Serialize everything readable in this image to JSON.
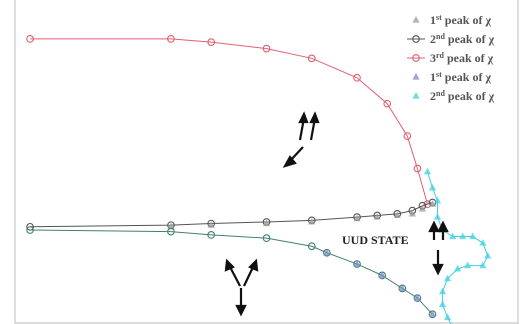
{
  "chart_data": {
    "type": "line",
    "title": "",
    "xlabel": "",
    "ylabel": "",
    "xlim": [
      0,
      100
    ],
    "ylim": [
      0,
      100
    ],
    "grid": false,
    "legend_placement": "top-right",
    "legend": [
      {
        "ordinal": "1",
        "suffix": "st",
        "text": " peak of χ",
        "color": "#9a9a9a",
        "marker": "triangle-filled"
      },
      {
        "ordinal": "2",
        "suffix": "nd",
        "text": " peak of χ",
        "color": "#555555",
        "marker": "circle-open"
      },
      {
        "ordinal": "3",
        "suffix": "rd",
        "text": " peak of χ",
        "color": "#e06070",
        "marker": "circle-open"
      },
      {
        "ordinal": "1",
        "suffix": "st",
        "text": " peak of χ",
        "color": "#7a8ac8",
        "marker": "triangle-filled"
      },
      {
        "ordinal": "2",
        "suffix": "nd",
        "text": " peak of χ",
        "color": "#40d0e0",
        "marker": "triangle-filled"
      }
    ],
    "series": [
      {
        "color": "#e06070",
        "marker": "circle-open",
        "line": true,
        "x": [
          3,
          31,
          39,
          50,
          59,
          68,
          74,
          78,
          80,
          82
        ],
        "y": [
          88,
          88,
          87,
          85,
          82,
          76,
          68,
          58,
          48,
          37
        ]
      },
      {
        "color": "#555555",
        "marker": "circle-open",
        "line": true,
        "x": [
          3,
          31,
          39,
          50,
          59,
          68,
          72,
          76,
          79,
          81,
          83
        ],
        "y": [
          30,
          30.5,
          31,
          31.5,
          32,
          33,
          33.5,
          34,
          35,
          36.5,
          37.5
        ]
      },
      {
        "color": "#9a9a9a",
        "marker": "triangle-filled",
        "line": false,
        "x": [
          31,
          39,
          50,
          59,
          68,
          72,
          76,
          79,
          81,
          83
        ],
        "y": [
          30,
          30.5,
          31,
          31.5,
          32.5,
          33,
          33.5,
          34,
          35.5,
          37
        ]
      },
      {
        "color": "#408070",
        "marker": "circle-open",
        "line": true,
        "x": [
          3,
          31,
          39,
          50,
          59,
          62,
          68,
          73,
          77,
          80,
          83
        ],
        "y": [
          29,
          28.5,
          27.5,
          26.5,
          24,
          22,
          18.5,
          15,
          11,
          8,
          3
        ]
      },
      {
        "color": "#7a8ac8",
        "marker": "triangle-filled",
        "line": false,
        "x": [
          62,
          68,
          73,
          77,
          80,
          83
        ],
        "y": [
          22,
          18.5,
          15,
          11,
          8,
          3
        ]
      },
      {
        "color": "#40d0e0",
        "marker": "triangle-filled",
        "line": true,
        "x": [
          82,
          83,
          84,
          84,
          85,
          87,
          89,
          91,
          93,
          94,
          93,
          90,
          88,
          86,
          85,
          85,
          86,
          87
        ],
        "y": [
          47,
          42,
          38,
          33,
          29,
          27,
          27,
          27,
          25,
          21,
          18,
          18,
          17,
          14,
          10,
          6,
          2,
          -1
        ]
      }
    ],
    "annotations": [
      {
        "text": "UUD STATE"
      }
    ]
  }
}
